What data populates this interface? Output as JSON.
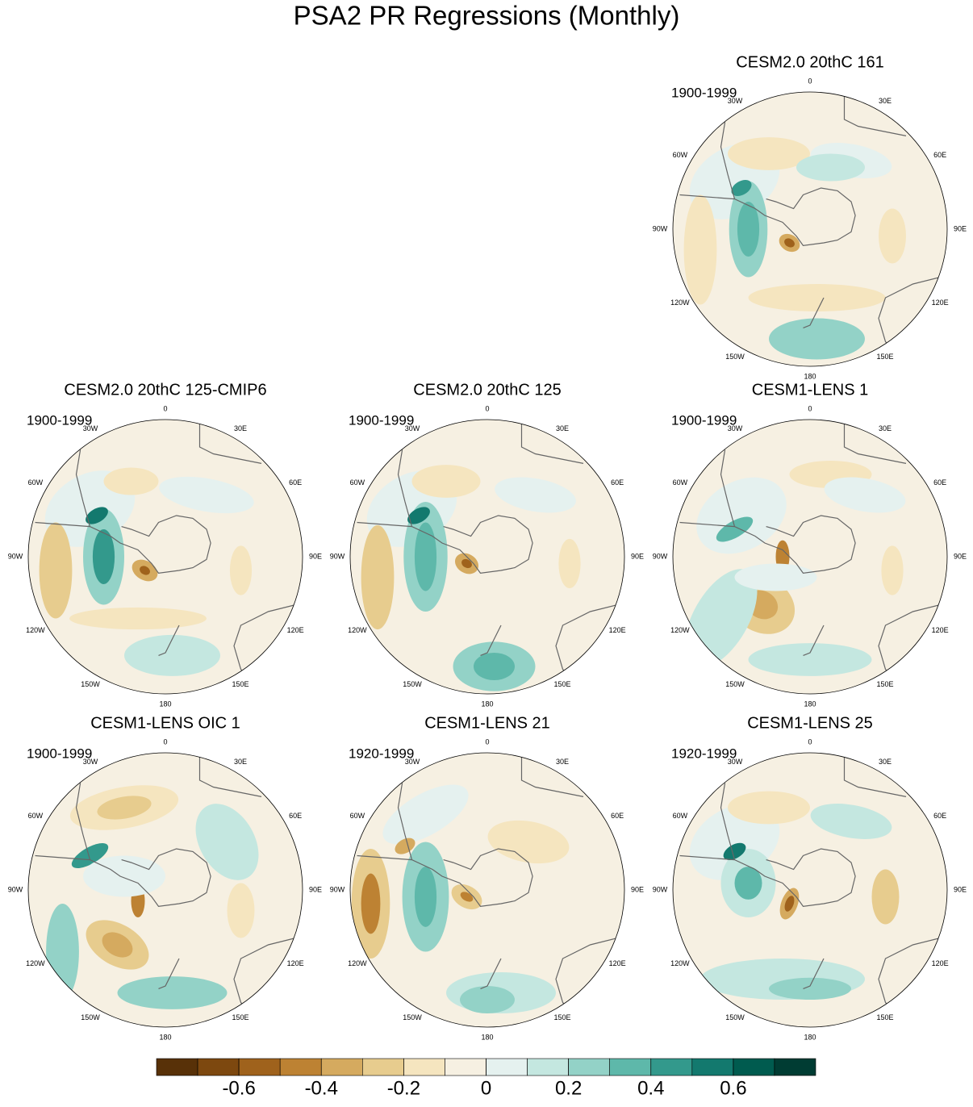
{
  "title": "PSA2 PR Regressions (Monthly)",
  "panels": [
    {
      "title": "CESM2.0 20thC 161",
      "period": "1900-1999"
    },
    {
      "title": "CESM2.0 20thC 125-CMIP6",
      "period": "1900-1999"
    },
    {
      "title": "CESM2.0 20thC 125",
      "period": "1900-1999"
    },
    {
      "title": "CESM1-LENS 1",
      "period": "1900-1999"
    },
    {
      "title": "CESM1-LENS OIC 1",
      "period": "1900-1999"
    },
    {
      "title": "CESM1-LENS 21",
      "period": "1920-1999"
    },
    {
      "title": "CESM1-LENS 25",
      "period": "1920-1999"
    }
  ],
  "lon_labels": [
    "0",
    "30E",
    "60E",
    "90E",
    "120E",
    "150E",
    "180",
    "150W",
    "120W",
    "90W",
    "60W",
    "30W"
  ],
  "colorbar": {
    "colors": [
      "#583108",
      "#7d480f",
      "#9f621c",
      "#bd8233",
      "#d5aa5f",
      "#e7cc8e",
      "#f5e5bf",
      "#f6f0e2",
      "#e5f1ef",
      "#c4e7e0",
      "#93d2c7",
      "#5eb8aa",
      "#33998c",
      "#13796e",
      "#005b4f",
      "#003c33"
    ],
    "range": [
      -0.8,
      0.8
    ],
    "ticks": [
      -0.6,
      -0.4,
      -0.2,
      0,
      0.2,
      0.4,
      0.6
    ]
  }
}
